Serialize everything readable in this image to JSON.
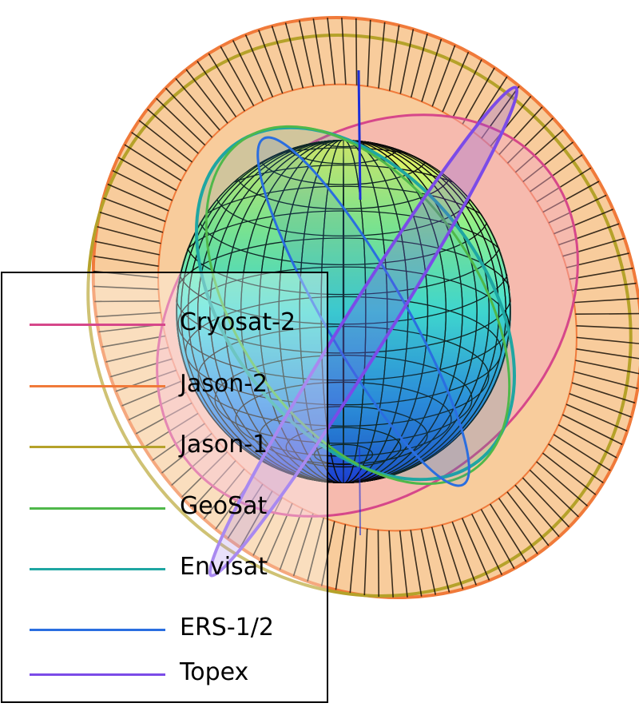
{
  "legend": {
    "items": [
      {
        "label": "Cryosat-2",
        "color": "#d6478a"
      },
      {
        "label": "Jason-2",
        "color": "#f07a3a"
      },
      {
        "label": "Jason-1",
        "color": "#b5a22a"
      },
      {
        "label": "GeoSat",
        "color": "#4fb84a"
      },
      {
        "label": "Envisat",
        "color": "#1fa6a2"
      },
      {
        "label": "ERS-1/2",
        "color": "#2a6ee0"
      },
      {
        "label": "Topex",
        "color": "#7b4be8"
      }
    ]
  },
  "colors": {
    "ring_fill": "#f2a24a",
    "ring_fill_pink": "#f5a3c6",
    "globe_top": "#f5f25a",
    "globe_mid": "#4fe3d6",
    "globe_bottom": "#1f55d6",
    "axis": "#1c2fd8"
  }
}
